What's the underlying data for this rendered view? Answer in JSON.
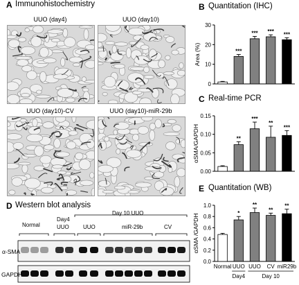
{
  "panels": {
    "A": {
      "letter": "A",
      "title": "Immunohistochemistry",
      "images": [
        {
          "label": "UUO (day4)"
        },
        {
          "label": "UUO (day10)"
        },
        {
          "label": "UUO (day10)-CV"
        },
        {
          "label": "UUO (day10)-miR-29b"
        }
      ]
    },
    "B": {
      "letter": "B",
      "title": "Quantitation (IHC)"
    },
    "C": {
      "letter": "C",
      "title": "Real-time PCR"
    },
    "D": {
      "letter": "D",
      "title": "Western blot analysis",
      "header_normal": "Normal",
      "header_day4": "Day4",
      "header_day4_uuo": "UUO",
      "header_day10": "Day 10 UUO",
      "header_uuo": "UUO",
      "header_mir": "miR-29b",
      "header_cv": "CV",
      "row_labels": [
        "α-SMA",
        "GAPDH"
      ]
    },
    "E": {
      "letter": "E",
      "title": "Quantitation (WB)"
    }
  },
  "chart_data": [
    {
      "id": "B",
      "type": "bar",
      "title": "Quantitation (IHC)",
      "ylabel": "Area (%)",
      "ylim": [
        0,
        30
      ],
      "yticks": [
        0,
        10,
        20,
        30
      ],
      "values": [
        1,
        14,
        23,
        24,
        22.5
      ],
      "errors": [
        0.3,
        1,
        1.2,
        1,
        1
      ],
      "colors": [
        "#ffffff",
        "#808080",
        "#808080",
        "#808080",
        "#000000"
      ],
      "sig": [
        "",
        "***",
        "***",
        "***",
        "***"
      ]
    },
    {
      "id": "C",
      "type": "bar",
      "title": "Real-time PCR",
      "ylabel": "αSMA/GAPDH",
      "ylim": [
        0,
        0.15
      ],
      "yticks": [
        0.0,
        0.05,
        0.1,
        0.15
      ],
      "yticklabels": [
        "0.00",
        "0.05",
        "0.10",
        "0.15"
      ],
      "values": [
        0.013,
        0.072,
        0.115,
        0.092,
        0.097
      ],
      "errors": [
        0.002,
        0.008,
        0.018,
        0.03,
        0.013
      ],
      "colors": [
        "#ffffff",
        "#808080",
        "#808080",
        "#808080",
        "#000000"
      ],
      "sig": [
        "",
        "**",
        "***",
        "**",
        "***"
      ]
    },
    {
      "id": "E",
      "type": "bar",
      "title": "Quantitation (WB)",
      "ylabel": "αSMA /GAPDH",
      "ylim": [
        0,
        1.0
      ],
      "yticks": [
        0,
        0.2,
        0.4,
        0.6,
        0.8,
        1.0
      ],
      "yticklabels": [
        "0.0",
        "0.2",
        "0.4",
        "0.6",
        "0.8",
        "1.0"
      ],
      "categories": [
        "Normal",
        "UUO",
        "UUO",
        "CV",
        "miR29b"
      ],
      "groups": [
        {
          "label": "Day4",
          "from": 1,
          "to": 1
        },
        {
          "label": "Day 10",
          "from": 2,
          "to": 4
        }
      ],
      "values": [
        0.48,
        0.74,
        0.87,
        0.82,
        0.85
      ],
      "errors": [
        0.02,
        0.06,
        0.08,
        0.04,
        0.08
      ],
      "colors": [
        "#ffffff",
        "#808080",
        "#808080",
        "#808080",
        "#000000"
      ],
      "sig": [
        "",
        "*",
        "**",
        "**",
        "**"
      ]
    }
  ]
}
